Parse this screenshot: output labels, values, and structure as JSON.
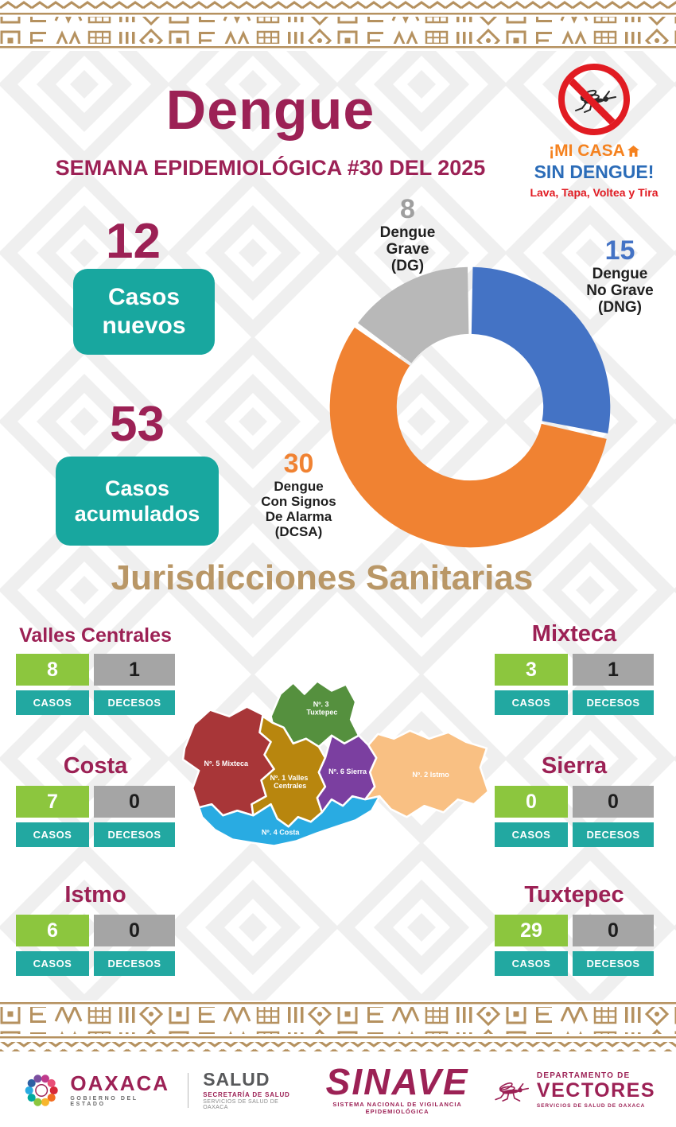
{
  "colors": {
    "maroon": "#9c2155",
    "teal": "#18a79f",
    "green": "#8cc63e",
    "gray": "#a5a5a5",
    "orange": "#f08232",
    "blue": "#4473c5",
    "tan": "#b99767",
    "red": "#e11b22"
  },
  "header": {
    "title": "Dengue",
    "subtitle": "SEMANA EPIDEMIOLÓGICA #30 DEL 2025"
  },
  "campaign": {
    "line1": "¡MI CASA",
    "line2": "SIN DENGUE!",
    "line3": "Lava, Tapa, Voltea y Tira"
  },
  "stats": {
    "nuevos": {
      "value": "12",
      "label": "Casos\nnuevos"
    },
    "acumulados": {
      "value": "53",
      "label": "Casos\nacumulados"
    }
  },
  "chart_data": {
    "type": "pie",
    "donut": true,
    "total": 53,
    "slices": [
      {
        "label": "Dengue No Grave (DNG)",
        "value": 15,
        "color": "#4473c5"
      },
      {
        "label": "Dengue Con Signos De Alarma (DCSA)",
        "value": 30,
        "color": "#f08232"
      },
      {
        "label": "Dengue Grave (DG)",
        "value": 8,
        "color": "#b8b8b8"
      }
    ]
  },
  "donut_labels": {
    "dg": {
      "value": "8",
      "text": "Dengue\nGrave\n(DG)"
    },
    "dng": {
      "value": "15",
      "text": "Dengue\nNo Grave\n(DNG)"
    },
    "dcsa": {
      "value": "30",
      "text": "Dengue\nCon Signos\nDe Alarma\n(DCSA)"
    }
  },
  "jurisdicciones": {
    "heading": "Jurisdicciones Sanitarias",
    "casos_label": "CASOS",
    "decesos_label": "DECESOS",
    "items": [
      {
        "name": "Valles Centrales",
        "casos": "8",
        "decesos": "1"
      },
      {
        "name": "Mixteca",
        "casos": "3",
        "decesos": "1"
      },
      {
        "name": "Costa",
        "casos": "7",
        "decesos": "0"
      },
      {
        "name": "Sierra",
        "casos": "0",
        "decesos": "0"
      },
      {
        "name": "Istmo",
        "casos": "6",
        "decesos": "0"
      },
      {
        "name": "Tuxtepec",
        "casos": "29",
        "decesos": "0"
      }
    ]
  },
  "map": {
    "regions": [
      {
        "id": "mixteca",
        "lines": [
          "Nº. 5 Mixteca",
          ""
        ],
        "color": "#a83638"
      },
      {
        "id": "tuxtepec",
        "lines": [
          "Nº. 3",
          "Tuxtepec"
        ],
        "color": "#55903e"
      },
      {
        "id": "valles-centrales",
        "lines": [
          "Nº. 1 Valles",
          "Centrales"
        ],
        "color": "#b8860e"
      },
      {
        "id": "sierra",
        "lines": [
          "Nº. 6 Sierra",
          ""
        ],
        "color": "#7b3fa0"
      },
      {
        "id": "istmo",
        "lines": [
          "Nº. 2 Istmo",
          ""
        ],
        "color": "#f9c083"
      },
      {
        "id": "costa",
        "lines": [
          "Nº. 4 Costa",
          ""
        ],
        "color": "#29abe2"
      }
    ]
  },
  "footer": {
    "oaxaca": {
      "name": "OAXACA",
      "sub": "GOBIERNO DEL ESTADO"
    },
    "salud": {
      "name": "SALUD",
      "line1": "SECRETARÍA DE SALUD",
      "line2": "SERVICIOS DE SALUD DE OAXACA"
    },
    "sinave": {
      "name": "SINAVE",
      "sub": "SISTEMA NACIONAL DE VIGILANCIA EPIDEMIOLÓGICA"
    },
    "vectores": {
      "line1": "DEPARTAMENTO DE",
      "name": "VECTORES",
      "sub": "SERVICIOS DE SALUD DE OAXACA"
    }
  }
}
